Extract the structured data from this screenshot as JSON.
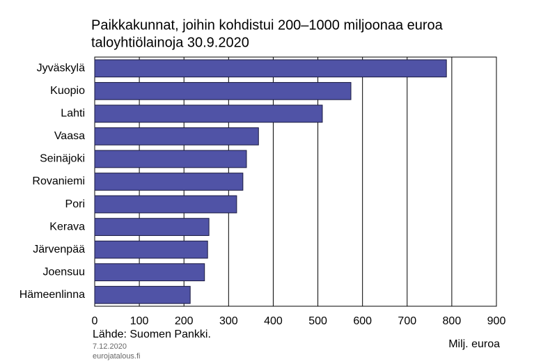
{
  "chart_data": {
    "type": "bar",
    "orientation": "horizontal",
    "title": [
      "Paikkakunnat, joihin kohdistui 200–1000 miljoonaa euroa",
      "taloyhtiölainoja 30.9.2020"
    ],
    "categories": [
      "Jyväskylä",
      "Kuopio",
      "Lahti",
      "Vaasa",
      "Seinäjoki",
      "Rovaniemi",
      "Pori",
      "Kerava",
      "Järvenpää",
      "Joensuu",
      "Hämeenlinna"
    ],
    "values": [
      788,
      574,
      510,
      367,
      340,
      332,
      318,
      256,
      253,
      246,
      214
    ],
    "color": "#5053a6",
    "xlim": [
      0,
      900
    ],
    "xticks": [
      0,
      100,
      200,
      300,
      400,
      500,
      600,
      700,
      800,
      900
    ],
    "grid": true,
    "x_label": "Milj. euroa",
    "source": "Lähde: Suomen Pankki.",
    "date": "7.12.2020",
    "website": "eurojatalous.fi"
  }
}
